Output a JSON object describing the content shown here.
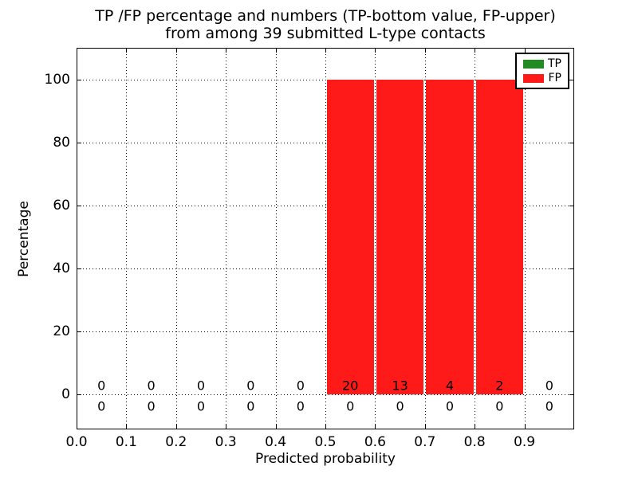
{
  "title": {
    "line1": "TP /FP percentage and numbers (TP-bottom value, FP-upper)",
    "line2": "from among 39 submitted L-type contacts"
  },
  "chart_data": {
    "type": "bar",
    "title": "TP /FP percentage and numbers (TP-bottom value, FP-upper)\nfrom among 39 submitted L-type contacts",
    "xlabel": "Predicted probability",
    "ylabel": "Percentage",
    "total_submitted_contacts": 39,
    "bin_edges": [
      0.0,
      0.1,
      0.2,
      0.3,
      0.4,
      0.5,
      0.6,
      0.7,
      0.8,
      0.9,
      1.0
    ],
    "x_tick_values": [
      0.0,
      0.1,
      0.2,
      0.3,
      0.4,
      0.5,
      0.6,
      0.7,
      0.8,
      0.9
    ],
    "x_tick_labels": [
      "0.0",
      "0.1",
      "0.2",
      "0.3",
      "0.4",
      "0.5",
      "0.6",
      "0.7",
      "0.8",
      "0.9"
    ],
    "y_tick_values": [
      0,
      20,
      40,
      60,
      80,
      100
    ],
    "y_tick_labels": [
      "0",
      "20",
      "40",
      "60",
      "80",
      "100"
    ],
    "xlim": [
      0.0,
      1.0
    ],
    "ylim": [
      -11,
      110
    ],
    "grid": "dotted",
    "legend_position": "upper-right",
    "series": [
      {
        "name": "TP",
        "color": "#228b22",
        "percents": [
          0,
          0,
          0,
          0,
          0,
          0,
          0,
          0,
          0,
          0
        ],
        "counts": [
          0,
          0,
          0,
          0,
          0,
          0,
          0,
          0,
          0,
          0
        ],
        "count_label_row": "below-baseline"
      },
      {
        "name": "FP",
        "color": "#ff1a1a",
        "percents": [
          0,
          0,
          0,
          0,
          0,
          100,
          100,
          100,
          100,
          0
        ],
        "counts": [
          0,
          0,
          0,
          0,
          0,
          20,
          13,
          4,
          2,
          0
        ],
        "count_label_row": "above-baseline"
      }
    ]
  }
}
